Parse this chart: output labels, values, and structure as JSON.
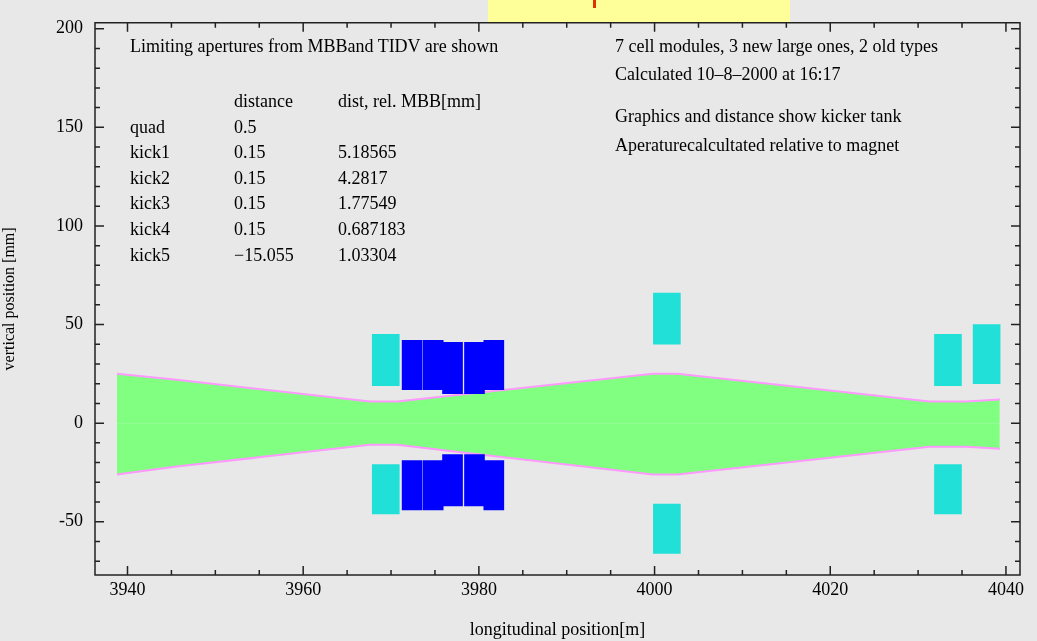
{
  "chart_data": {
    "type": "bar",
    "xlabel": "longitudinal position[m]",
    "ylabel": "vertical position [mm]",
    "xlim": [
      3936.3,
      4041.6
    ],
    "ylim": [
      -77,
      203
    ],
    "xticks": [
      3940,
      {
        "value": 3945,
        "label": null
      },
      {
        "value": 3950,
        "label": null
      },
      {
        "value": 3955,
        "label": null
      },
      3960,
      {
        "value": 3965,
        "label": null
      },
      {
        "value": 3970,
        "label": null
      },
      {
        "value": 3975,
        "label": null
      },
      3980,
      {
        "value": 3985,
        "label": null
      },
      {
        "value": 3990,
        "label": null
      },
      {
        "value": 3995,
        "label": null
      },
      4000,
      {
        "value": 4005,
        "label": null
      },
      {
        "value": 4010,
        "label": null
      },
      {
        "value": 4015,
        "label": null
      },
      4020,
      {
        "value": 4025,
        "label": null
      },
      {
        "value": 4030,
        "label": null
      },
      {
        "value": 4035,
        "label": null
      },
      4040
    ],
    "yticks": [
      {
        "value": -70,
        "label": null
      },
      {
        "value": -60,
        "label": null
      },
      -50,
      {
        "value": -40,
        "label": null
      },
      {
        "value": -30,
        "label": null
      },
      {
        "value": -20,
        "label": null
      },
      {
        "value": -10,
        "label": null
      },
      0,
      {
        "value": 10,
        "label": null
      },
      {
        "value": 20,
        "label": null
      },
      {
        "value": 30,
        "label": null
      },
      {
        "value": 40,
        "label": null
      },
      50,
      {
        "value": 60,
        "label": null
      },
      {
        "value": 70,
        "label": null
      },
      {
        "value": 80,
        "label": null
      },
      {
        "value": 90,
        "label": null
      },
      100,
      {
        "value": 110,
        "label": null
      },
      {
        "value": 120,
        "label": null
      },
      {
        "value": 130,
        "label": null
      },
      {
        "value": 140,
        "label": null
      },
      150,
      {
        "value": 160,
        "label": null
      },
      {
        "value": 170,
        "label": null
      },
      {
        "value": 180,
        "label": null
      },
      {
        "value": 190,
        "label": null
      },
      200
    ],
    "grid": false,
    "legend": false,
    "marker": "none",
    "annotations": [
      "Limiting apertures from MBBand TIDV are shown",
      "  distance  dist, rel. MBB[mm]",
      "quad  0.5",
      "kick1  0.15  5.18565",
      "kick2  0.15  4.2817",
      "kick3  0.15  1.77549",
      "kick4  0.15  0.687183",
      "kick5  −15.055  1.03304",
      "7 cell modules, 3 new large ones, 2 old types",
      "Calculated 10–8–2000 at 16:17",
      "Graphics and distance show kicker tank",
      "Aperaturecalcultated relative to magnet"
    ],
    "series": [
      {
        "type": "area",
        "color": "#80ff80",
        "x": [
          3938.8,
          3945.6,
          3967.6,
          3970.7,
          3999.8,
          4002.6,
          4031.3,
          4035.5,
          4039.3
        ],
        "values": [
          25,
          22,
          11,
          11,
          25,
          25,
          11,
          11,
          12
        ]
      },
      {
        "type": "area",
        "color": "#80ff80",
        "x": [
          3938.8,
          3945.6,
          3967.6,
          3970.7,
          3999.8,
          4002.6,
          4031.3,
          4035.5,
          4039.3
        ],
        "values": [
          -26,
          -22,
          -11,
          -11,
          -26,
          -26,
          -12,
          -12,
          -13
        ]
      },
      {
        "type": "line",
        "color": "#ff99ff",
        "x": [
          3938.8,
          3945.6,
          3967.6,
          3970.7,
          3999.8,
          4002.6,
          4031.3,
          4035.5,
          4039.3
        ],
        "values": [
          25,
          22,
          11,
          11,
          25,
          25,
          11,
          11,
          12
        ]
      },
      {
        "type": "line",
        "color": "#ff99ff",
        "x": [
          3938.8,
          3945.6,
          3967.6,
          3970.7,
          3999.8,
          4002.6,
          4031.3,
          4035.5,
          4039.3
        ],
        "values": [
          -26,
          -22,
          -11,
          -11,
          -26,
          -26,
          -12,
          -12,
          -13
        ]
      },
      {
        "color": "#20e0d8",
        "x": [
          3969.4,
          4001.4,
          4033.4,
          4037.8
        ],
        "base": [
          19,
          40,
          19,
          20
        ],
        "values": [
          26,
          26,
          26,
          30
        ]
      },
      {
        "color": "#20e0d8",
        "x": [
          3969.4,
          4001.4,
          4033.4
        ],
        "base": [
          -46,
          -66,
          -46
        ],
        "values": [
          25,
          25,
          25
        ]
      },
      {
        "color": "#0000ff",
        "x": [
          3972.4,
          3974.8,
          3977,
          3979.5,
          3981.7
        ],
        "base": [
          17,
          17,
          15,
          15,
          17
        ],
        "values": [
          25,
          25,
          26,
          26,
          25
        ]
      },
      {
        "color": "#0000ff",
        "x": [
          3972.4,
          3974.8,
          3977,
          3979.5,
          3981.7
        ],
        "base": [
          -44,
          -44,
          -42,
          -42,
          -44
        ],
        "values": [
          25,
          25,
          26,
          26,
          25
        ]
      }
    ]
  }
}
